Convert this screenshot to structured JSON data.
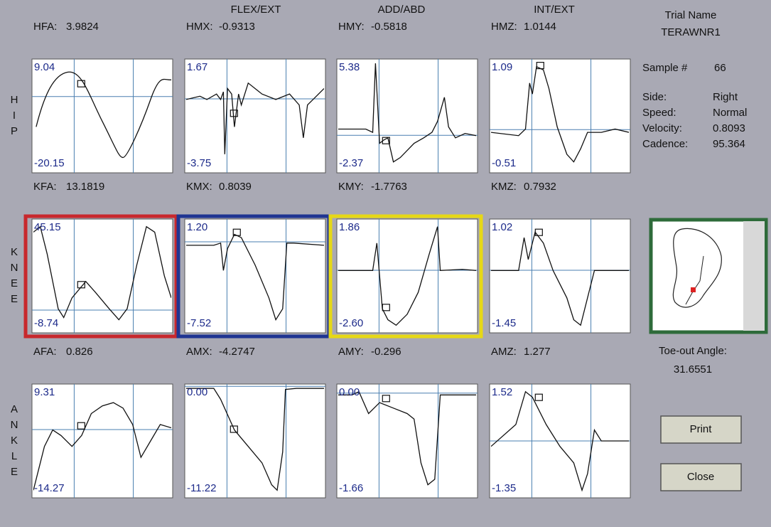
{
  "header": {
    "columns": [
      "FLEX/EXT",
      "ADD/ABD",
      "INT/EXT"
    ]
  },
  "rows": [
    {
      "letters": [
        "H",
        "I",
        "P"
      ],
      "panels": [
        {
          "label": "HFA:",
          "value": "3.9824",
          "max": "9.04",
          "min": "-20.15"
        },
        {
          "label": "HMX:",
          "value": "-0.9313",
          "max": "1.67",
          "min": "-3.75"
        },
        {
          "label": "HMY:",
          "value": "-0.5818",
          "max": "5.38",
          "min": "-2.37"
        },
        {
          "label": "HMZ:",
          "value": "1.0144",
          "max": "1.09",
          "min": "-0.51"
        }
      ]
    },
    {
      "letters": [
        "K",
        "N",
        "E",
        "E"
      ],
      "panels": [
        {
          "label": "KFA:",
          "value": "13.1819",
          "max": "45.15",
          "min": "-8.74"
        },
        {
          "label": "KMX:",
          "value": "0.8039",
          "max": "1.20",
          "min": "-7.52"
        },
        {
          "label": "KMY:",
          "value": "-1.7763",
          "max": "1.86",
          "min": "-2.60"
        },
        {
          "label": "KMZ:",
          "value": "0.7932",
          "max": "1.02",
          "min": "-1.45"
        }
      ]
    },
    {
      "letters": [
        "A",
        "N",
        "K",
        "L",
        "E"
      ],
      "panels": [
        {
          "label": "AFA:",
          "value": "0.826",
          "max": "9.31",
          "min": "-14.27"
        },
        {
          "label": "AMX:",
          "value": "-4.2747",
          "max": "0.00",
          "min": "-11.22"
        },
        {
          "label": "AMY:",
          "value": "-0.296",
          "max": "0.00",
          "min": "-1.66"
        },
        {
          "label": "AMZ:",
          "value": "1.277",
          "max": "1.52",
          "min": "-1.35"
        }
      ]
    }
  ],
  "info": {
    "trial_name_label": "Trial Name",
    "trial_name": "TERAWNR1",
    "sample_label": "Sample #",
    "sample": "66",
    "fields": [
      {
        "label": "Side:",
        "value": "Right"
      },
      {
        "label": "Speed:",
        "value": "Normal"
      },
      {
        "label": "Velocity:",
        "value": "0.8093"
      },
      {
        "label": "Cadence:",
        "value": "95.364"
      }
    ]
  },
  "toe_out": {
    "label": "Toe-out Angle:",
    "value": "31.6551"
  },
  "buttons": [
    "Print",
    "Close"
  ]
}
